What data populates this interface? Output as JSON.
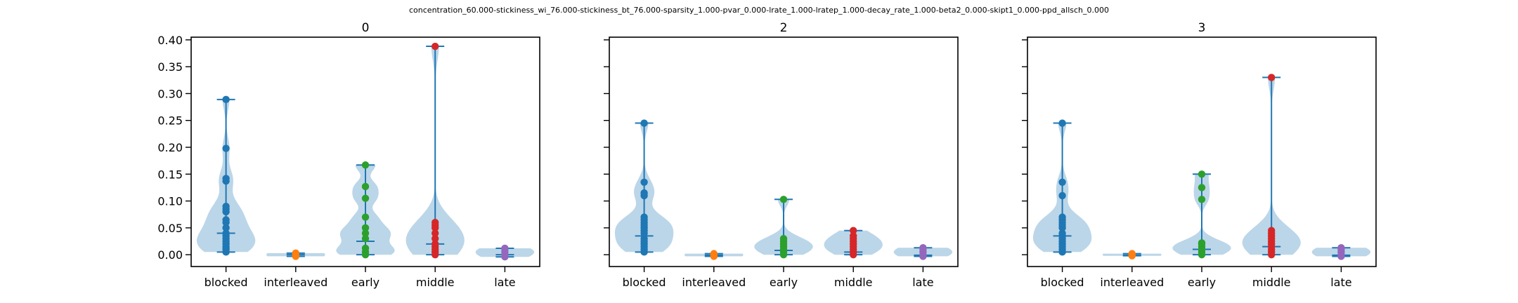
{
  "figure": {
    "suptitle": "concentration_60.000-stickiness_wi_76.000-stickiness_bt_76.000-sparsity_1.000-pvar_0.000-lrate_1.000-lratep_1.000-decay_rate_1.000-beta2_0.000-skipt1_0.000-ppd_allsch_0.000"
  },
  "chart_data": [
    {
      "type": "violin",
      "title": "0",
      "categories": [
        "blocked",
        "interleaved",
        "early",
        "middle",
        "late"
      ],
      "ylim": [
        -0.022,
        0.405
      ],
      "yticks": [
        0.0,
        0.05,
        0.1,
        0.15,
        0.2,
        0.25,
        0.3,
        0.35,
        0.4
      ],
      "yticklabels": [
        "0.00",
        "0.05",
        "0.10",
        "0.15",
        "0.20",
        "0.25",
        "0.30",
        "0.35",
        "0.40"
      ],
      "series": [
        {
          "category": "blocked",
          "points": [
            0.005,
            0.01,
            0.012,
            0.015,
            0.02,
            0.025,
            0.03,
            0.035,
            0.04,
            0.05,
            0.06,
            0.065,
            0.08,
            0.085,
            0.09,
            0.137,
            0.142,
            0.198,
            0.289
          ],
          "min": 0.005,
          "max": 0.289,
          "median": 0.04,
          "mean": 0.038
        },
        {
          "category": "interleaved",
          "points": [
            -0.003,
            0.0,
            0.003
          ],
          "min": -0.003,
          "max": 0.003,
          "median": 0.0,
          "mean": 0.0
        },
        {
          "category": "early",
          "points": [
            0.0,
            0.005,
            0.012,
            0.03,
            0.04,
            0.05,
            0.07,
            0.105,
            0.127,
            0.167
          ],
          "min": 0.0,
          "max": 0.167,
          "median": 0.025,
          "mean": 0.03
        },
        {
          "category": "middle",
          "points": [
            0.0,
            0.005,
            0.01,
            0.015,
            0.02,
            0.03,
            0.04,
            0.05,
            0.055,
            0.06,
            0.388
          ],
          "min": 0.0,
          "max": 0.388,
          "median": 0.02,
          "mean": 0.025
        },
        {
          "category": "late",
          "points": [
            -0.004,
            0.0,
            0.005,
            0.01,
            0.012
          ],
          "min": -0.004,
          "max": 0.012,
          "median": 0.0,
          "mean": 0.002
        }
      ]
    },
    {
      "type": "violin",
      "title": "2",
      "categories": [
        "blocked",
        "interleaved",
        "early",
        "middle",
        "late"
      ],
      "ylim": [
        -0.022,
        0.405
      ],
      "yticks": [
        0.0,
        0.05,
        0.1,
        0.15,
        0.2,
        0.25,
        0.3,
        0.35,
        0.4
      ],
      "yticklabels": [
        "",
        "",
        "",
        "",
        "",
        "",
        "",
        "",
        ""
      ],
      "series": [
        {
          "category": "blocked",
          "points": [
            0.005,
            0.01,
            0.015,
            0.02,
            0.025,
            0.03,
            0.04,
            0.045,
            0.05,
            0.055,
            0.06,
            0.065,
            0.07,
            0.11,
            0.115,
            0.135,
            0.245
          ],
          "min": 0.005,
          "max": 0.245,
          "median": 0.035,
          "mean": 0.04
        },
        {
          "category": "interleaved",
          "points": [
            -0.003,
            0.0,
            0.002
          ],
          "min": -0.003,
          "max": 0.002,
          "median": -0.001,
          "mean": 0.0
        },
        {
          "category": "early",
          "points": [
            0.0,
            0.005,
            0.01,
            0.015,
            0.02,
            0.025,
            0.03,
            0.103
          ],
          "min": 0.0,
          "max": 0.103,
          "median": 0.008,
          "mean": 0.01
        },
        {
          "category": "middle",
          "points": [
            0.0,
            0.005,
            0.01,
            0.015,
            0.02,
            0.025,
            0.03,
            0.035,
            0.045
          ],
          "min": 0.0,
          "max": 0.045,
          "median": 0.005,
          "mean": 0.01
        },
        {
          "category": "late",
          "points": [
            -0.003,
            0.0,
            0.005,
            0.01,
            0.013
          ],
          "min": -0.003,
          "max": 0.013,
          "median": -0.001,
          "mean": 0.001
        }
      ]
    },
    {
      "type": "violin",
      "title": "3",
      "categories": [
        "blocked",
        "interleaved",
        "early",
        "middle",
        "late"
      ],
      "ylim": [
        -0.022,
        0.405
      ],
      "yticks": [
        0.0,
        0.05,
        0.1,
        0.15,
        0.2,
        0.25,
        0.3,
        0.35,
        0.4
      ],
      "yticklabels": [
        "",
        "",
        "",
        "",
        "",
        "",
        "",
        "",
        ""
      ],
      "series": [
        {
          "category": "blocked",
          "points": [
            0.005,
            0.01,
            0.015,
            0.02,
            0.025,
            0.03,
            0.035,
            0.04,
            0.05,
            0.055,
            0.06,
            0.065,
            0.07,
            0.11,
            0.135,
            0.245
          ],
          "min": 0.005,
          "max": 0.245,
          "median": 0.035,
          "mean": 0.04
        },
        {
          "category": "interleaved",
          "points": [
            -0.002,
            0.0,
            0.002
          ],
          "min": -0.002,
          "max": 0.002,
          "median": -0.001,
          "mean": 0.0
        },
        {
          "category": "early",
          "points": [
            0.0,
            0.005,
            0.01,
            0.015,
            0.02,
            0.022,
            0.103,
            0.125,
            0.15
          ],
          "min": 0.0,
          "max": 0.15,
          "median": 0.01,
          "mean": 0.015
        },
        {
          "category": "middle",
          "points": [
            0.0,
            0.005,
            0.01,
            0.015,
            0.02,
            0.025,
            0.03,
            0.035,
            0.04,
            0.045,
            0.33
          ],
          "min": 0.0,
          "max": 0.33,
          "median": 0.015,
          "mean": 0.02
        },
        {
          "category": "late",
          "points": [
            -0.003,
            0.0,
            0.005,
            0.01,
            0.013
          ],
          "min": -0.003,
          "max": 0.013,
          "median": -0.001,
          "mean": 0.001
        }
      ]
    }
  ],
  "style": {
    "point_colors": [
      "#1f77b4",
      "#ff7f0e",
      "#2ca02c",
      "#d62728",
      "#9467bd"
    ],
    "violin_fill": "#1f77b4",
    "line_color": "#1f77b4"
  }
}
